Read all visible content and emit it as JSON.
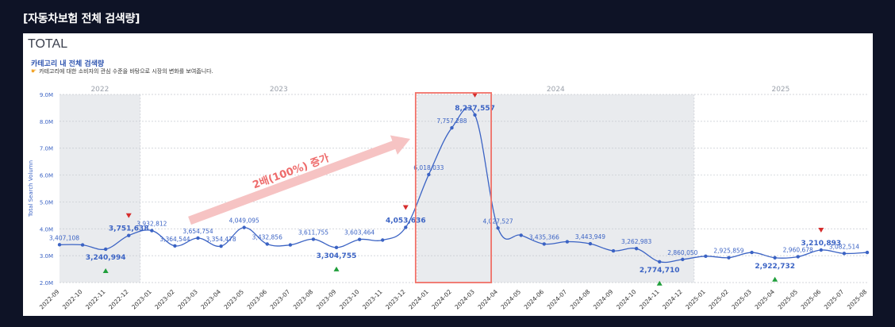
{
  "header": {
    "outer_title": "[자동차보험 전체 검색량]"
  },
  "panel": {
    "title": "TOTAL",
    "category_title": "카테고리 내 전체 검색량",
    "category_desc": "카테고리에 대한 소비자의 관심 수준을 바탕으로 시장의 변화를 보여줍니다.",
    "desc_icon": "pointing-hand-icon"
  },
  "annotation": {
    "text": "2배(100%) 증가",
    "color": "#f4a7a7"
  },
  "colors": {
    "line": "#3b63c4",
    "label": "#3b63c4",
    "peak": "#d62c2c",
    "trough": "#1f9e3a",
    "highlight_box": "#f07067",
    "shade": "#e9ebee"
  },
  "chart_data": {
    "type": "line",
    "ylabel": "Total Search Volumn",
    "ylim": [
      2000000,
      9000000
    ],
    "yticks": [
      "2.0M",
      "3.0M",
      "4.0M",
      "5.0M",
      "6.0M",
      "7.0M",
      "8.0M",
      "9.0M"
    ],
    "year_bands": [
      {
        "label": "2022",
        "from": "2022-09",
        "to": "2022-12",
        "shaded": true
      },
      {
        "label": "2023",
        "from": "2023-01",
        "to": "2023-12",
        "shaded": false
      },
      {
        "label": "2024",
        "from": "2024-01",
        "to": "2024-12",
        "shaded": true
      },
      {
        "label": "2025",
        "from": "2025-01",
        "to": "2025-08",
        "shaded": false
      }
    ],
    "x": [
      "2022-09",
      "2022-10",
      "2022-11",
      "2022-12",
      "2023-01",
      "2023-02",
      "2023-03",
      "2023-04",
      "2023-05",
      "2023-06",
      "2023-07",
      "2023-08",
      "2023-09",
      "2023-10",
      "2023-11",
      "2023-12",
      "2024-01",
      "2024-02",
      "2024-03",
      "2024-04",
      "2024-05",
      "2024-06",
      "2024-07",
      "2024-08",
      "2024-09",
      "2024-10",
      "2024-11",
      "2024-12",
      "2025-01",
      "2025-02",
      "2025-03",
      "2025-04",
      "2025-05",
      "2025-06",
      "2025-07",
      "2025-08"
    ],
    "series": [
      {
        "values": [
          3407108,
          3400000,
          3240994,
          3751638,
          3932812,
          3364544,
          3654754,
          3354478,
          4049095,
          3432856,
          3400000,
          3611755,
          3304755,
          3603464,
          3580000,
          4053636,
          6018033,
          7757288,
          8237557,
          4027527,
          3760000,
          3435366,
          3520000,
          3443949,
          3180000,
          3262983,
          2774710,
          2860050,
          2980000,
          2925859,
          3120000,
          2922732,
          2960678,
          3210893,
          3082514,
          3120000
        ],
        "labels": [
          "3,407,108",
          "",
          "3,240,994",
          "3,751,638",
          "3,932,812",
          "3,364,544",
          "3,654,754",
          "3,354,478",
          "4,049,095",
          "3,432,856",
          "",
          "3,611,755",
          "3,304,755",
          "3,603,464",
          "",
          "4,053,636",
          "6,018,033",
          "7,757,288",
          "8,237,557",
          "4,027,527",
          "",
          "3,435,366",
          "",
          "3,443,949",
          "",
          "3,262,983",
          "2,774,710",
          "2,860,050",
          "",
          "2,925,859",
          "",
          "2,922,732",
          "2,960,678",
          "3,210,893",
          "3,082,514",
          ""
        ],
        "bold": [
          false,
          false,
          true,
          true,
          false,
          false,
          false,
          false,
          false,
          false,
          false,
          false,
          true,
          false,
          false,
          true,
          false,
          false,
          true,
          false,
          false,
          false,
          false,
          false,
          false,
          false,
          true,
          false,
          false,
          false,
          false,
          true,
          false,
          true,
          false,
          false
        ],
        "markers": [
          {
            "index": 2,
            "type": "trough"
          },
          {
            "index": 3,
            "type": "peak"
          },
          {
            "index": 12,
            "type": "trough"
          },
          {
            "index": 15,
            "type": "peak"
          },
          {
            "index": 18,
            "type": "peak"
          },
          {
            "index": 26,
            "type": "trough"
          },
          {
            "index": 31,
            "type": "trough"
          },
          {
            "index": 33,
            "type": "peak"
          }
        ]
      }
    ],
    "highlight": {
      "from": "2024-01",
      "to": "2024-03"
    }
  }
}
